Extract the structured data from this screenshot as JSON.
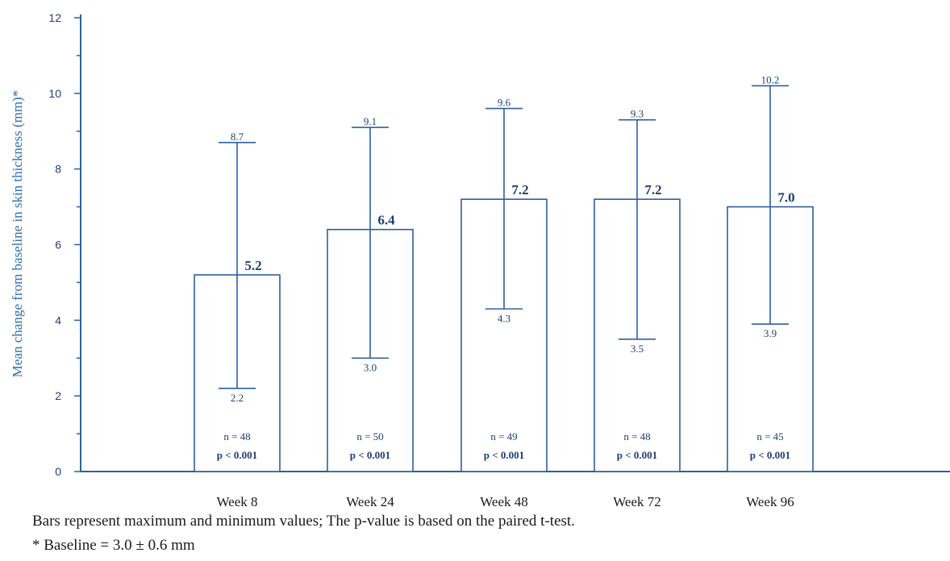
{
  "chart_data": {
    "type": "bar",
    "title": "",
    "xlabel": "",
    "ylabel": "Mean change from baseline in skin thickness (mm)*",
    "ylim": [
      0,
      12
    ],
    "yticks": [
      "0",
      "2",
      "4",
      "6",
      "8",
      "10",
      "12"
    ],
    "grid": false,
    "categories": [
      "Week 8",
      "Week 24",
      "Week 48",
      "Week 72",
      "Week 96"
    ],
    "values": [
      5.2,
      6.4,
      7.2,
      7.2,
      7.0
    ],
    "value_labels": [
      "5.2",
      "6.4",
      "7.2",
      "7.2",
      "7.0"
    ],
    "max": [
      8.7,
      9.1,
      9.6,
      9.3,
      10.2
    ],
    "max_labels": [
      "8.7",
      "9.1",
      "9.6",
      "9.3",
      "10.2"
    ],
    "min": [
      2.2,
      3.0,
      4.3,
      3.5,
      3.9
    ],
    "min_labels": [
      "2.2",
      "3.0",
      "4.3",
      "3.5",
      "3.9"
    ],
    "n_labels": [
      "n = 48",
      "n = 50",
      "n = 49",
      "n = 48",
      "n = 45"
    ],
    "p_labels": [
      "p < 0.001",
      "p < 0.001",
      "p < 0.001",
      "p < 0.001",
      "p < 0.001"
    ],
    "footnotes": [
      "Bars represent maximum and minimum values;  The p-value is based on the paired t-test.",
      "* Baseline = 3.0 ± 0.6 mm"
    ]
  },
  "colors": {
    "axis": "#2e5f9e",
    "bar_stroke": "#2e5f9e",
    "bar_fill": "#ffffff",
    "ylabel": "#2e6db4",
    "text": "#1f3f73"
  }
}
